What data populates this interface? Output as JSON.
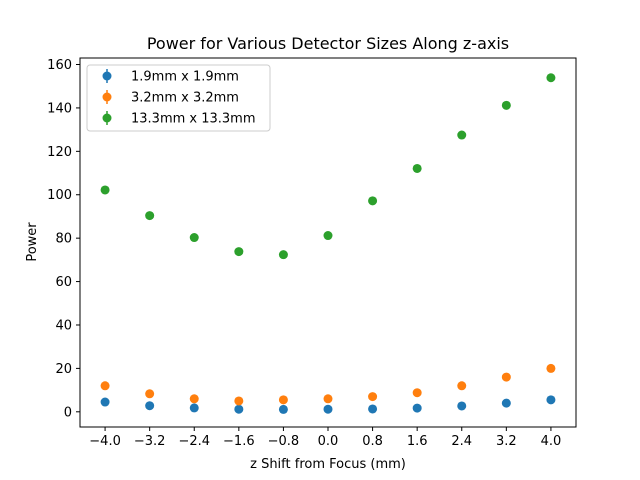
{
  "chart_data": {
    "type": "scatter",
    "title": "Power for Various Detector Sizes Along z-axis",
    "xlabel": "z Shift from Focus (mm)",
    "ylabel": "Power",
    "xlim": [
      -4.45,
      4.45
    ],
    "ylim": [
      -7,
      163
    ],
    "xticks": [
      -4.0,
      -3.2,
      -2.4,
      -1.6,
      -0.8,
      0.0,
      0.8,
      1.6,
      2.4,
      3.2,
      4.0
    ],
    "xtick_labels": [
      "−4.0",
      "−3.2",
      "−2.4",
      "−1.6",
      "−0.8",
      "0.0",
      "0.8",
      "1.6",
      "2.4",
      "3.2",
      "4.0"
    ],
    "yticks": [
      0,
      20,
      40,
      60,
      80,
      100,
      120,
      140,
      160
    ],
    "ytick_labels": [
      "0",
      "20",
      "40",
      "60",
      "80",
      "100",
      "120",
      "140",
      "160"
    ],
    "grid": false,
    "legend_position": "top-left",
    "x": [
      -4.0,
      -3.2,
      -2.4,
      -1.6,
      -0.8,
      0.0,
      0.8,
      1.6,
      2.4,
      3.2,
      4.0
    ],
    "series": [
      {
        "name": "1.9mm x 1.9mm",
        "color": "#1f77b4",
        "values": [
          4.5,
          2.8,
          1.8,
          1.2,
          1.1,
          1.2,
          1.3,
          1.7,
          2.7,
          4.0,
          5.5
        ]
      },
      {
        "name": "3.2mm x 3.2mm",
        "color": "#ff7f0e",
        "values": [
          12.0,
          8.3,
          6.0,
          5.0,
          5.5,
          6.0,
          7.0,
          8.8,
          12.0,
          16.0,
          20.0
        ]
      },
      {
        "name": "13.3mm x 13.3mm",
        "color": "#2ca02c",
        "values": [
          102.2,
          90.4,
          80.3,
          73.8,
          72.4,
          81.2,
          97.2,
          112.1,
          127.5,
          141.2,
          153.9
        ]
      }
    ]
  }
}
